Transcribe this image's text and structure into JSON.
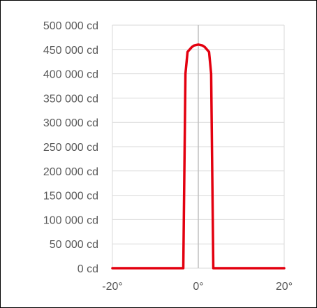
{
  "chart_data": {
    "type": "line",
    "title": "",
    "xlabel": "",
    "ylabel": "",
    "xlim": [
      -20,
      20
    ],
    "ylim": [
      0,
      500000
    ],
    "x_ticks": [
      {
        "value": -20,
        "label": "-20°"
      },
      {
        "value": 0,
        "label": "0°"
      },
      {
        "value": 20,
        "label": "20°"
      }
    ],
    "y_ticks": [
      {
        "value": 0,
        "label": "0 cd"
      },
      {
        "value": 50000,
        "label": "50 000 cd"
      },
      {
        "value": 100000,
        "label": "100 000 cd"
      },
      {
        "value": 150000,
        "label": "150 000 cd"
      },
      {
        "value": 200000,
        "label": "200 000 cd"
      },
      {
        "value": 250000,
        "label": "250 000 cd"
      },
      {
        "value": 300000,
        "label": "300 000 cd"
      },
      {
        "value": 350000,
        "label": "350 000 cd"
      },
      {
        "value": 400000,
        "label": "400 000 cd"
      },
      {
        "value": 450000,
        "label": "450 000 cd"
      },
      {
        "value": 500000,
        "label": "500 000 cd"
      }
    ],
    "grid": {
      "horizontal": true,
      "vertical": true
    },
    "legend": "none",
    "series": [
      {
        "color": "#e3000f",
        "x": [
          -20,
          -3.5,
          -3,
          -2.5,
          -1.5,
          -1,
          0,
          1,
          1.5,
          2.5,
          3,
          3.5,
          20
        ],
        "y": [
          0,
          0,
          400000,
          445000,
          455000,
          458000,
          460000,
          458000,
          455000,
          445000,
          400000,
          0,
          0
        ]
      }
    ],
    "colors": {
      "series": "#e3000f",
      "grid": "#d9d9d9",
      "zero_line": "#bfbfbf",
      "axis": "#d9d9d9",
      "tick_text": "#595959"
    }
  }
}
